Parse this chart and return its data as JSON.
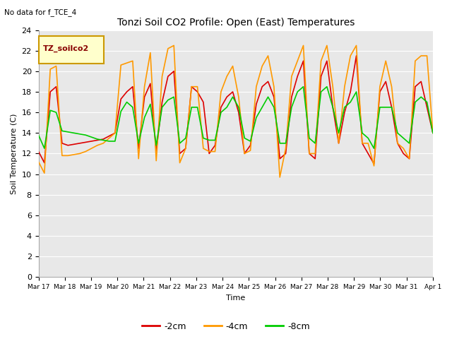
{
  "title": "Tonzi Soil CO2 Profile: Open (East) Temperatures",
  "subtitle": "No data for f_TCE_4",
  "ylabel": "Soil Temperature (C)",
  "xlabel": "Time",
  "ylim": [
    0,
    24
  ],
  "yticks": [
    0,
    2,
    4,
    6,
    8,
    10,
    12,
    14,
    16,
    18,
    20,
    22,
    24
  ],
  "legend_label": "TZ_soilco2",
  "legend_bg": "#ffffcc",
  "legend_border": "#cc9900",
  "line_labels": [
    "-2cm",
    "-4cm",
    "-8cm"
  ],
  "line_colors": [
    "#dd0000",
    "#ff9900",
    "#00cc00"
  ],
  "bg_color": "#e8e8e8",
  "fig_bg": "#ffffff",
  "x_ticklabels": [
    "Mar 17",
    "Mar 18",
    "Mar 19",
    "Mar 20",
    "Mar 21",
    "Mar 22",
    "Mar 23",
    "Mar 24",
    "Mar 25",
    "Mar 26",
    "Mar 27",
    "Mar 28",
    "Mar 29",
    "Mar 30",
    "Mar 31",
    "Apr 1"
  ],
  "data_2cm": [
    12.2,
    11.1,
    18.0,
    18.5,
    13.0,
    12.8,
    12.9,
    13.0,
    13.1,
    13.2,
    13.3,
    13.4,
    13.7,
    14.0,
    17.3,
    18.0,
    18.5,
    12.5,
    17.5,
    18.8,
    12.2,
    17.0,
    19.5,
    20.0,
    12.0,
    12.5,
    18.5,
    18.0,
    17.0,
    12.0,
    12.8,
    16.5,
    17.5,
    18.0,
    16.0,
    12.0,
    12.8,
    16.8,
    18.5,
    19.0,
    17.5,
    11.5,
    12.0,
    17.5,
    19.5,
    21.0,
    12.0,
    11.5,
    19.5,
    21.0,
    16.5,
    13.0,
    16.0,
    18.0,
    21.5,
    13.0,
    12.0,
    11.0,
    18.0,
    19.0,
    16.5,
    13.0,
    12.0,
    11.5,
    18.5,
    19.0,
    16.5,
    14.0
  ],
  "data_4cm": [
    11.2,
    10.1,
    20.2,
    20.5,
    11.8,
    11.8,
    11.9,
    12.0,
    12.2,
    12.5,
    12.8,
    13.0,
    13.5,
    14.0,
    20.6,
    20.8,
    21.0,
    11.5,
    18.5,
    21.8,
    11.3,
    19.5,
    22.2,
    22.5,
    11.1,
    12.5,
    18.5,
    18.5,
    12.5,
    12.2,
    12.2,
    18.0,
    19.5,
    20.5,
    17.5,
    12.0,
    12.3,
    18.5,
    20.5,
    21.5,
    18.5,
    9.7,
    12.5,
    19.5,
    21.0,
    22.5,
    12.0,
    12.0,
    21.0,
    22.5,
    18.5,
    13.0,
    18.5,
    21.5,
    22.5,
    13.0,
    13.0,
    10.8,
    18.5,
    21.0,
    18.5,
    13.0,
    12.5,
    11.5,
    21.0,
    21.5,
    21.5,
    14.0
  ],
  "data_8cm": [
    13.8,
    12.5,
    16.2,
    16.0,
    14.2,
    14.1,
    14.0,
    13.9,
    13.8,
    13.6,
    13.4,
    13.3,
    13.2,
    13.2,
    16.1,
    17.0,
    16.5,
    13.0,
    15.5,
    16.8,
    12.8,
    16.5,
    17.2,
    17.5,
    13.0,
    13.5,
    16.5,
    16.5,
    13.5,
    13.3,
    13.3,
    16.0,
    16.5,
    17.5,
    16.5,
    13.5,
    13.2,
    15.5,
    16.5,
    17.5,
    16.5,
    13.0,
    13.0,
    16.5,
    18.0,
    18.5,
    13.5,
    13.0,
    18.0,
    18.5,
    16.5,
    14.0,
    16.5,
    17.0,
    18.0,
    14.0,
    13.5,
    12.5,
    16.5,
    16.5,
    16.5,
    14.0,
    13.5,
    13.0,
    17.0,
    17.5,
    17.0,
    14.0
  ]
}
